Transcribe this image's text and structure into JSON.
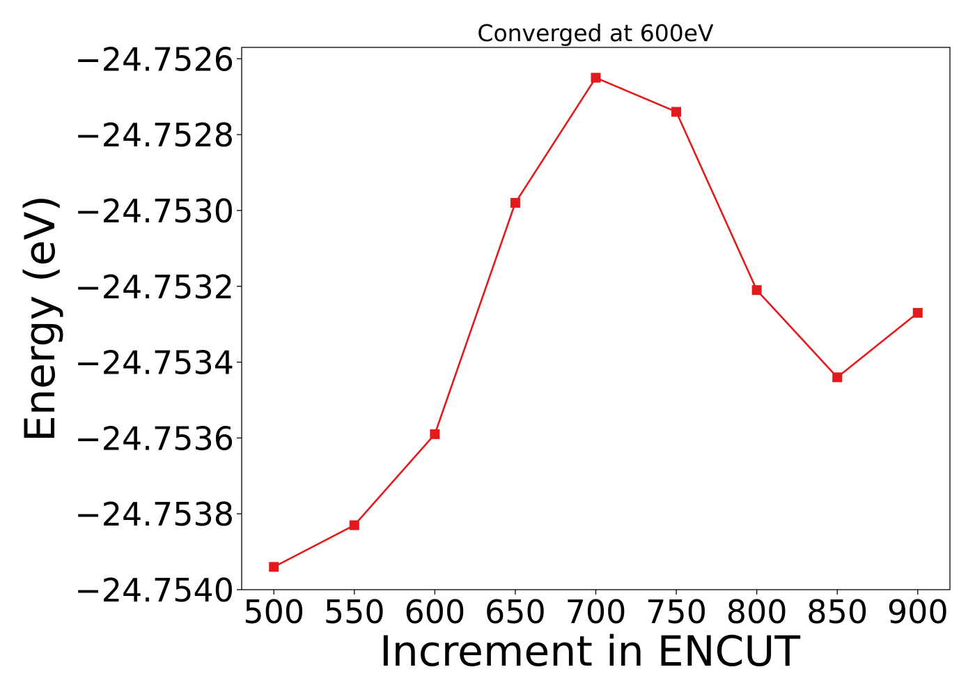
{
  "chart_data": {
    "type": "line",
    "title": "Converged at 600eV",
    "xlabel": "Increment in ENCUT",
    "ylabel": "Energy (eV)",
    "x": [
      500,
      550,
      600,
      650,
      700,
      750,
      800,
      850,
      900
    ],
    "series": [
      {
        "values": [
          -24.75394,
          -24.75383,
          -24.75359,
          -24.75298,
          -24.75265,
          -24.75274,
          -24.75321,
          -24.75344,
          -24.75327
        ],
        "color": "#e31a1c",
        "marker": "square"
      }
    ],
    "xticks": [
      500,
      550,
      600,
      650,
      700,
      750,
      800,
      850,
      900
    ],
    "xtick_labels": [
      "500",
      "550",
      "600",
      "650",
      "700",
      "750",
      "800",
      "850",
      "900"
    ],
    "yticks": [
      -24.754,
      -24.7538,
      -24.7536,
      -24.7534,
      -24.7532,
      -24.753,
      -24.7528,
      -24.7526
    ],
    "ytick_labels": [
      "−24.7540",
      "−24.7538",
      "−24.7536",
      "−24.7534",
      "−24.7532",
      "−24.7530",
      "−24.7528",
      "−24.7526"
    ],
    "xlim": [
      480,
      920
    ],
    "ylim": [
      -24.754,
      -24.75257
    ],
    "grid": false,
    "legend": false
  }
}
